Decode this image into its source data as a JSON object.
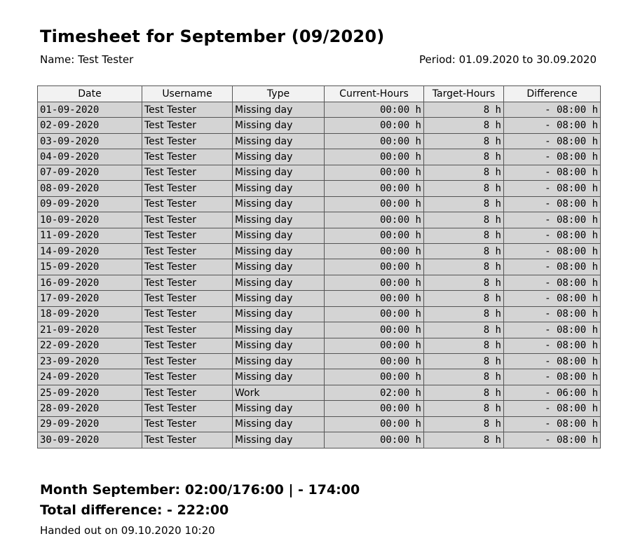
{
  "title": "Timesheet for September (09/2020)",
  "name_line": "Name: Test Tester",
  "period_line": "Period: 01.09.2020 to 30.09.2020",
  "columns": [
    "Date",
    "Username",
    "Type",
    "Current-Hours",
    "Target-Hours",
    "Difference"
  ],
  "rows": [
    {
      "date": "01-09-2020",
      "user": "Test Tester",
      "type": "Missing day",
      "current": "00:00 h",
      "target": "8 h",
      "diff": "- 08:00 h"
    },
    {
      "date": "02-09-2020",
      "user": "Test Tester",
      "type": "Missing day",
      "current": "00:00 h",
      "target": "8 h",
      "diff": "- 08:00 h"
    },
    {
      "date": "03-09-2020",
      "user": "Test Tester",
      "type": "Missing day",
      "current": "00:00 h",
      "target": "8 h",
      "diff": "- 08:00 h"
    },
    {
      "date": "04-09-2020",
      "user": "Test Tester",
      "type": "Missing day",
      "current": "00:00 h",
      "target": "8 h",
      "diff": "- 08:00 h"
    },
    {
      "date": "07-09-2020",
      "user": "Test Tester",
      "type": "Missing day",
      "current": "00:00 h",
      "target": "8 h",
      "diff": "- 08:00 h"
    },
    {
      "date": "08-09-2020",
      "user": "Test Tester",
      "type": "Missing day",
      "current": "00:00 h",
      "target": "8 h",
      "diff": "- 08:00 h"
    },
    {
      "date": "09-09-2020",
      "user": "Test Tester",
      "type": "Missing day",
      "current": "00:00 h",
      "target": "8 h",
      "diff": "- 08:00 h"
    },
    {
      "date": "10-09-2020",
      "user": "Test Tester",
      "type": "Missing day",
      "current": "00:00 h",
      "target": "8 h",
      "diff": "- 08:00 h"
    },
    {
      "date": "11-09-2020",
      "user": "Test Tester",
      "type": "Missing day",
      "current": "00:00 h",
      "target": "8 h",
      "diff": "- 08:00 h"
    },
    {
      "date": "14-09-2020",
      "user": "Test Tester",
      "type": "Missing day",
      "current": "00:00 h",
      "target": "8 h",
      "diff": "- 08:00 h"
    },
    {
      "date": "15-09-2020",
      "user": "Test Tester",
      "type": "Missing day",
      "current": "00:00 h",
      "target": "8 h",
      "diff": "- 08:00 h"
    },
    {
      "date": "16-09-2020",
      "user": "Test Tester",
      "type": "Missing day",
      "current": "00:00 h",
      "target": "8 h",
      "diff": "- 08:00 h"
    },
    {
      "date": "17-09-2020",
      "user": "Test Tester",
      "type": "Missing day",
      "current": "00:00 h",
      "target": "8 h",
      "diff": "- 08:00 h"
    },
    {
      "date": "18-09-2020",
      "user": "Test Tester",
      "type": "Missing day",
      "current": "00:00 h",
      "target": "8 h",
      "diff": "- 08:00 h"
    },
    {
      "date": "21-09-2020",
      "user": "Test Tester",
      "type": "Missing day",
      "current": "00:00 h",
      "target": "8 h",
      "diff": "- 08:00 h"
    },
    {
      "date": "22-09-2020",
      "user": "Test Tester",
      "type": "Missing day",
      "current": "00:00 h",
      "target": "8 h",
      "diff": "- 08:00 h"
    },
    {
      "date": "23-09-2020",
      "user": "Test Tester",
      "type": "Missing day",
      "current": "00:00 h",
      "target": "8 h",
      "diff": "- 08:00 h"
    },
    {
      "date": "24-09-2020",
      "user": "Test Tester",
      "type": "Missing day",
      "current": "00:00 h",
      "target": "8 h",
      "diff": "- 08:00 h"
    },
    {
      "date": "25-09-2020",
      "user": "Test Tester",
      "type": "Work",
      "current": "02:00 h",
      "target": "8 h",
      "diff": "- 06:00 h"
    },
    {
      "date": "28-09-2020",
      "user": "Test Tester",
      "type": "Missing day",
      "current": "00:00 h",
      "target": "8 h",
      "diff": "- 08:00 h"
    },
    {
      "date": "29-09-2020",
      "user": "Test Tester",
      "type": "Missing day",
      "current": "00:00 h",
      "target": "8 h",
      "diff": "- 08:00 h"
    },
    {
      "date": "30-09-2020",
      "user": "Test Tester",
      "type": "Missing day",
      "current": "00:00 h",
      "target": "8 h",
      "diff": "- 08:00 h"
    }
  ],
  "summary": {
    "month_line": "Month September: 02:00/176:00 | - 174:00",
    "total_line": "Total difference: - 222:00",
    "handed_out": "Handed out on 09.10.2020 10:20"
  },
  "colors": {
    "cell_bg": "#d4d4d4",
    "header_bg": "#f2f2f2",
    "border": "#555555"
  }
}
